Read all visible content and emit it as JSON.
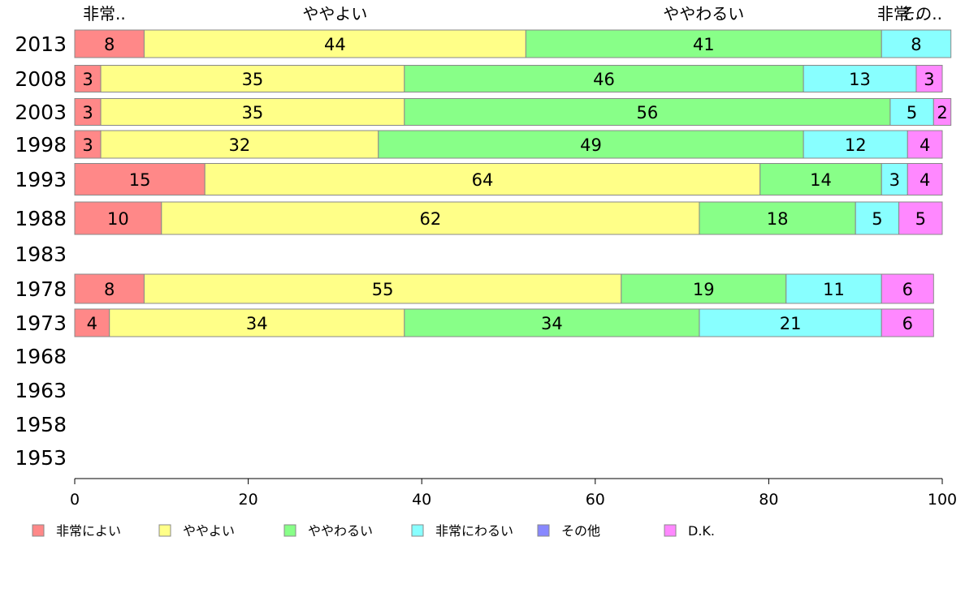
{
  "chart_data": {
    "type": "bar",
    "orientation": "horizontal",
    "stacked": true,
    "categories": [
      "2013",
      "2008",
      "2003",
      "1998",
      "1993",
      "1988",
      "1983",
      "1978",
      "1973",
      "1968",
      "1963",
      "1958",
      "1953"
    ],
    "series": [
      {
        "name": "非常によい",
        "color": "#ff8888",
        "values": [
          8,
          3,
          3,
          3,
          15,
          10,
          null,
          8,
          4,
          null,
          null,
          null,
          null
        ]
      },
      {
        "name": "ややよい",
        "color": "#ffff88",
        "values": [
          44,
          35,
          35,
          32,
          64,
          62,
          null,
          55,
          34,
          null,
          null,
          null,
          null
        ]
      },
      {
        "name": "ややわるい",
        "color": "#88ff88",
        "values": [
          41,
          46,
          56,
          49,
          14,
          18,
          null,
          19,
          34,
          null,
          null,
          null,
          null
        ]
      },
      {
        "name": "非常にわるい",
        "color": "#88ffff",
        "values": [
          8,
          13,
          5,
          12,
          3,
          5,
          null,
          11,
          21,
          null,
          null,
          null,
          null
        ]
      },
      {
        "name": "その他",
        "color": "#8888ff",
        "values": [
          0,
          0,
          0,
          0,
          0,
          0,
          null,
          0,
          0,
          null,
          null,
          null,
          null
        ]
      },
      {
        "name": "D.K.",
        "color": "#ff88ff",
        "values": [
          0,
          3,
          2,
          4,
          4,
          5,
          null,
          6,
          6,
          null,
          null,
          null,
          null
        ]
      }
    ],
    "top_labels": [
      "非常..",
      "ややよい",
      "ややわるい",
      "非常..",
      "その.."
    ],
    "xlim": [
      0,
      100
    ],
    "xticks": [
      0,
      20,
      40,
      60,
      80,
      100
    ],
    "legend_position": "bottom",
    "grid": false
  }
}
